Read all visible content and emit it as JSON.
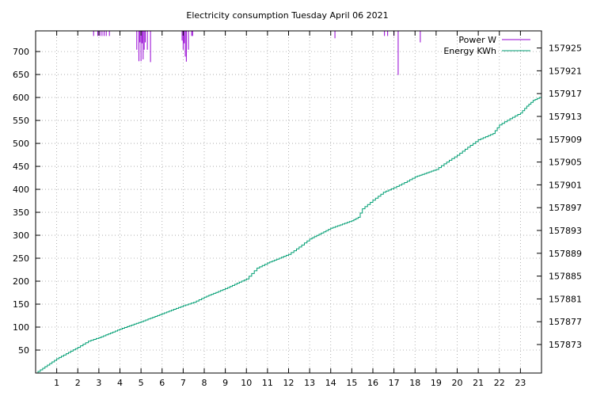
{
  "chart_data": {
    "type": "line",
    "title": "Electricity consumption Tuesday April 06 2021",
    "xlabel": "",
    "ylabel": "",
    "y2label": "",
    "grid": true,
    "legend_position": "top-right",
    "xlim": [
      0,
      24
    ],
    "ylim": [
      0,
      745
    ],
    "y2lim": [
      157868,
      157928
    ],
    "x_ticks": [
      1,
      2,
      3,
      4,
      5,
      6,
      7,
      8,
      9,
      10,
      11,
      12,
      13,
      14,
      15,
      16,
      17,
      18,
      19,
      20,
      21,
      22,
      23
    ],
    "x_tick_labels": [
      "1",
      "2",
      "3",
      "4",
      "5",
      "6",
      "7",
      "8",
      "9",
      "10",
      "11",
      "12",
      "13",
      "14",
      "15",
      "16",
      "17",
      "18",
      "19",
      "20",
      "21",
      "22",
      "23"
    ],
    "y_ticks": [
      50,
      100,
      150,
      200,
      250,
      300,
      350,
      400,
      450,
      500,
      550,
      600,
      650,
      700
    ],
    "y_tick_labels": [
      "50",
      "100",
      "150",
      "200",
      "250",
      "300",
      "350",
      "400",
      "450",
      "500",
      "550",
      "600",
      "650",
      "700"
    ],
    "y2_ticks": [
      157873,
      157877,
      157881,
      157885,
      157889,
      157893,
      157897,
      157901,
      157905,
      157909,
      157913,
      157917,
      157921,
      157925
    ],
    "y2_tick_labels": [
      "157873",
      "157877",
      "157881",
      "157885",
      "157889",
      "157893",
      "157897",
      "157901",
      "157905",
      "157909",
      "157913",
      "157917",
      "157921",
      "157925"
    ],
    "series": [
      {
        "name": "Power W",
        "axis": "y",
        "color": "#9400d3",
        "style": "impulses",
        "x": [
          2.75,
          2.95,
          3.05,
          3.15,
          3.25,
          3.35,
          3.5,
          4.8,
          4.9,
          4.95,
          5.0,
          5.05,
          5.1,
          5.15,
          5.2,
          5.3,
          5.45,
          6.95,
          7.0,
          7.05,
          7.1,
          7.15,
          7.25,
          7.4,
          7.45,
          14.2,
          16.55,
          16.7,
          17.0,
          17.2,
          18.25
        ],
        "values": [
          734,
          734,
          734,
          734,
          734,
          734,
          734,
          704,
          679,
          720,
          679,
          718,
          683,
          704,
          720,
          704,
          677,
          724,
          704,
          718,
          689,
          678,
          704,
          734,
          734,
          729,
          734,
          734,
          734,
          649,
          720
        ]
      },
      {
        "name": "Energy KWh",
        "axis": "y2",
        "color": "#009e73",
        "style": "steps",
        "x": [
          0,
          1,
          2,
          2.5,
          3,
          4,
          5,
          6,
          7,
          7.5,
          8,
          9,
          10,
          10.5,
          11,
          12,
          12.5,
          13,
          14,
          15,
          15.3,
          15.5,
          16,
          16.5,
          17,
          17.5,
          18,
          19,
          19.5,
          20,
          20.5,
          21,
          21.7,
          22,
          22.5,
          23,
          23.3,
          23.6,
          24
        ],
        "values": [
          157868.0,
          157870.5,
          157872.5,
          157873.6,
          157874.2,
          157875.7,
          157877.0,
          157878.4,
          157879.8,
          157880.4,
          157881.3,
          157882.8,
          157884.5,
          157886.4,
          157887.3,
          157888.8,
          157890.1,
          157891.5,
          157893.4,
          157894.7,
          157895.3,
          157896.8,
          157898.3,
          157899.7,
          157900.5,
          157901.4,
          157902.4,
          157903.7,
          157905.0,
          157906.2,
          157907.6,
          157908.9,
          157910.0,
          157911.5,
          157912.6,
          157913.6,
          157914.8,
          157915.8,
          157916.5
        ]
      }
    ]
  }
}
